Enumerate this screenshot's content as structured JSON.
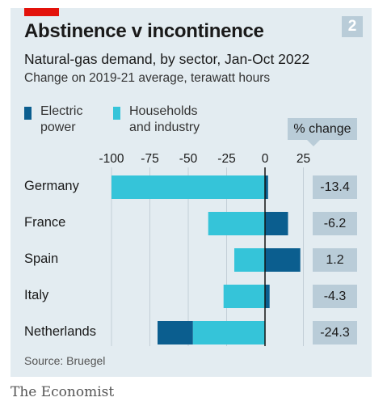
{
  "header": {
    "badge": "2",
    "title": "Abstinence v incontinence",
    "subtitle": "Natural-gas demand, by sector, Jan-Oct 2022",
    "subsubtitle": "Change on 2019-21 average, terawatt hours"
  },
  "pct_header": "% change",
  "source": "Source: Bruegel",
  "brand": "The Economist",
  "colors": {
    "electric": "#0b5e8f",
    "households": "#35c4d9",
    "panel": "#e3ecf1",
    "badge": "#b9ccd8",
    "red": "#e3120b"
  },
  "chart_data": {
    "type": "bar",
    "orientation": "horizontal",
    "stacked": true,
    "categories": [
      "Germany",
      "France",
      "Spain",
      "Italy",
      "Netherlands"
    ],
    "series": [
      {
        "name": "Electric power",
        "values": [
          2,
          15,
          23,
          3,
          -23
        ]
      },
      {
        "name": "Households and industry",
        "values": [
          -100,
          -37,
          -20,
          -27,
          -47
        ]
      }
    ],
    "pct_change": [
      "-13.4",
      "-6.2",
      "1.2",
      "-4.3",
      "-24.3"
    ],
    "xticks": [
      "-100",
      "-75",
      "-50",
      "-25",
      "0",
      "25"
    ],
    "xtick_values": [
      -100,
      -75,
      -50,
      -25,
      0,
      25
    ],
    "xlim": [
      -100,
      25
    ],
    "grid": true,
    "legend": "top-left"
  }
}
